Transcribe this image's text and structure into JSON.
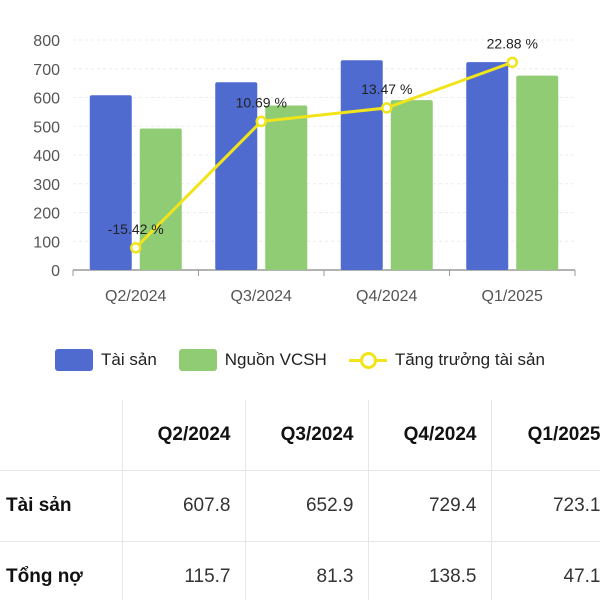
{
  "chart_data": {
    "type": "bar",
    "categories": [
      "Q2/2024",
      "Q3/2024",
      "Q4/2024",
      "Q1/2025"
    ],
    "series": [
      {
        "name": "Tài sản",
        "type": "bar",
        "color": "#4f6bd0",
        "values": [
          607.8,
          652.9,
          729.4,
          723.1
        ]
      },
      {
        "name": "Nguồn VCSH",
        "type": "bar",
        "color": "#8fcc74",
        "values": [
          492,
          572,
          591,
          676
        ]
      },
      {
        "name": "Tăng trưởng tài sản",
        "type": "line",
        "color": "#f1e41b",
        "values": [
          -15.42,
          10.69,
          13.47,
          22.88
        ],
        "labels": [
          "-15.42 %",
          "10.69 %",
          "13.47 %",
          "22.88 %"
        ]
      }
    ],
    "yticks": [
      "0",
      "100",
      "200",
      "300",
      "400",
      "500",
      "600",
      "700",
      "800"
    ],
    "ylim": [
      0,
      800
    ],
    "grid": true,
    "legend_position": "bottom"
  },
  "table": {
    "columns": [
      "",
      "Q2/2024",
      "Q3/2024",
      "Q4/2024",
      "Q1/2025"
    ],
    "rows": [
      {
        "label": "Tài sản",
        "values": [
          "607.8",
          "652.9",
          "729.4",
          "723.1"
        ]
      },
      {
        "label": "Tổng nợ",
        "values": [
          "115.7",
          "81.3",
          "138.5",
          "47.1"
        ]
      }
    ]
  }
}
